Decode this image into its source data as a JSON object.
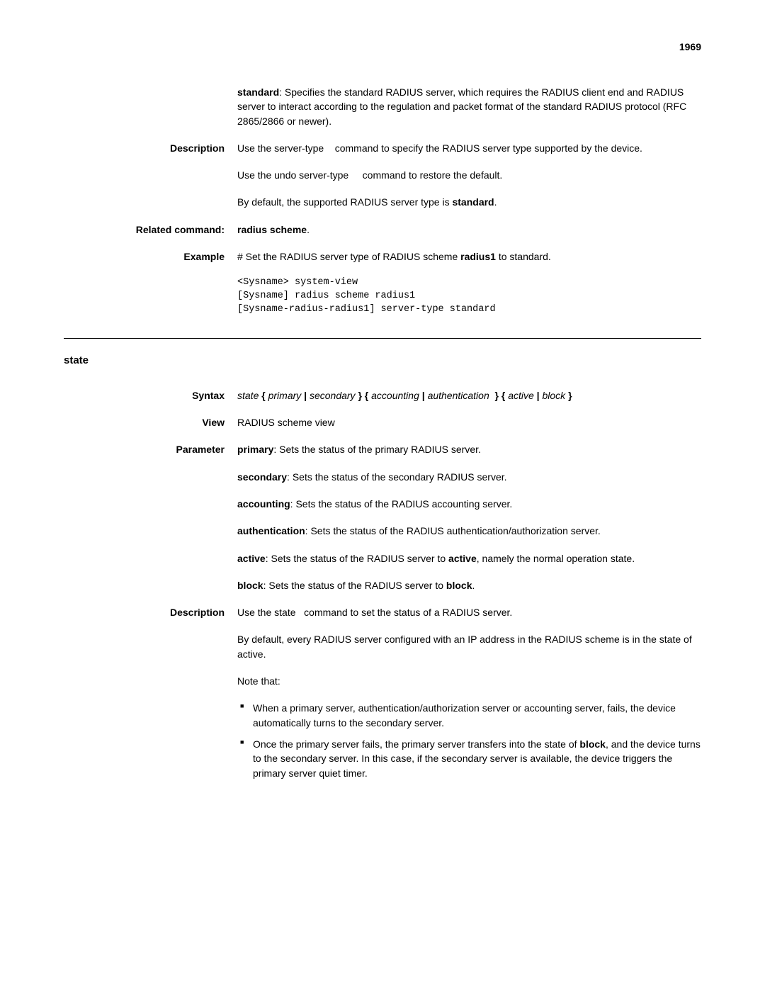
{
  "pageNumber": "1969",
  "block1": {
    "standard_label": "standard",
    "standard_text": ": Specifies the standard RADIUS server, which requires the RADIUS client end and RADIUS server to interact according to the regulation and packet format of the standard RADIUS protocol (RFC 2865/2866 or newer)."
  },
  "description1": {
    "label": "Description",
    "p1_a": "Use the ",
    "p1_cmd": "server-type",
    "p1_b": " command to specify the RADIUS server type supported by the device.",
    "p2_a": "Use the ",
    "p2_cmd": "undo server-type",
    "p2_b": " command to restore the default.",
    "p3_a": "By default, the supported RADIUS server type is ",
    "p3_bold": "standard",
    "p3_b": "."
  },
  "related": {
    "label": "Related command:",
    "text": "radius scheme",
    "suffix": "."
  },
  "example1": {
    "label": "Example",
    "intro_a": "# Set the RADIUS server type of RADIUS scheme ",
    "intro_bold": "radius1",
    "intro_b": " to standard.",
    "code": "<Sysname> system-view\n[Sysname] radius scheme radius1\n[Sysname-radius-radius1] server-type standard"
  },
  "section": {
    "heading": "state"
  },
  "syntax": {
    "label": "Syntax",
    "s1": "state",
    "b1": " { ",
    "s2": "primary",
    "b2": " | ",
    "s3": "secondary",
    "b3": " } { ",
    "s4": "accounting",
    "b4": " | ",
    "s5": "authentication",
    "b5": " } { ",
    "s6": "active",
    "b6": " | ",
    "s7": "block",
    "b7": " }"
  },
  "view": {
    "label": "View",
    "text": "RADIUS scheme view"
  },
  "parameter": {
    "label": "Parameter",
    "primary_l": "primary",
    "primary_t": ": Sets the status of the primary RADIUS server.",
    "secondary_l": "secondary",
    "secondary_t": ": Sets the status of the secondary RADIUS server.",
    "accounting_l": "accounting",
    "accounting_t": ": Sets the status of the RADIUS accounting server.",
    "authentication_l": "authentication",
    "authentication_t": ": Sets the status of the RADIUS authentication/authorization server.",
    "active_l": "active",
    "active_t1": ": Sets the status of the RADIUS server to ",
    "active_b": "active",
    "active_t2": ", namely the normal operation state.",
    "block_l": "block",
    "block_t1": ": Sets the status of the RADIUS server to ",
    "block_b": "block",
    "block_t2": "."
  },
  "description2": {
    "label": "Description",
    "p1_a": "Use the ",
    "p1_cmd": "state",
    "p1_b": " command to set the status of a RADIUS server.",
    "p2": "By default, every RADIUS server configured with an IP address in the RADIUS scheme is in the state of active.",
    "p3": "Note that:",
    "li1": "When a primary server, authentication/authorization server or accounting server, fails, the device automatically turns to the secondary server.",
    "li2_a": "Once the primary server fails, the primary server transfers into the state of ",
    "li2_bold": "block",
    "li2_b": ", and the device turns to the secondary server. In this case, if the secondary server is available, the device triggers the primary server quiet timer."
  }
}
